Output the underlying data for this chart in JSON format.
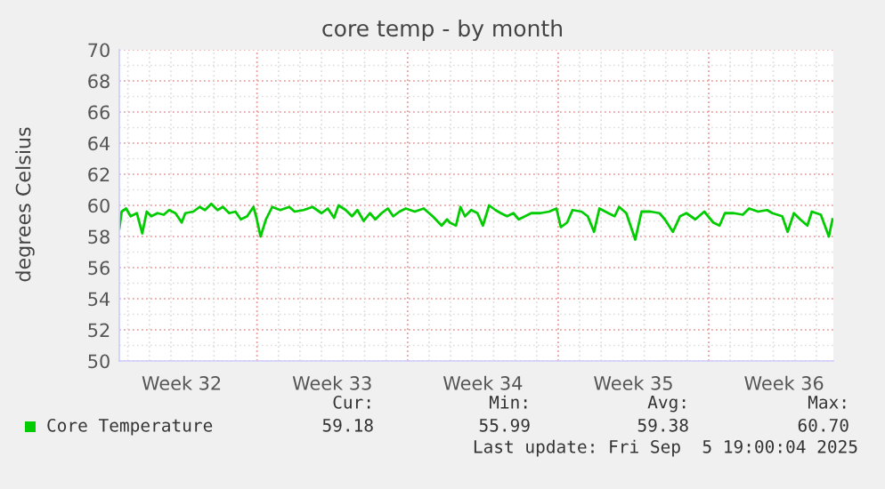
{
  "chart_data": {
    "type": "line",
    "title": "core temp - by month",
    "ylabel": "degrees Celsius",
    "xlim": [
      "2025-08-03T14:24",
      "2025-09-05T19:00"
    ],
    "ylim": [
      50,
      70
    ],
    "yticks": [
      50,
      52,
      54,
      56,
      58,
      60,
      62,
      64,
      66,
      68,
      70
    ],
    "xticks": [
      {
        "value": "2025-08-06T12:00",
        "label": "Week 32"
      },
      {
        "value": "2025-08-10",
        "label": null
      },
      {
        "value": "2025-08-13T12:00",
        "label": "Week 33"
      },
      {
        "value": "2025-08-17",
        "label": null
      },
      {
        "value": "2025-08-20T12:00",
        "label": "Week 34"
      },
      {
        "value": "2025-08-24",
        "label": null
      },
      {
        "value": "2025-08-27T12:00",
        "label": "Week 35"
      },
      {
        "value": "2025-08-31",
        "label": null
      },
      {
        "value": "2025-09-03T12:00",
        "label": "Week 36"
      }
    ],
    "grid": true,
    "legend": "bottom left",
    "marker": "none",
    "line_style": "solid",
    "series": [
      {
        "name": "Core Temperature",
        "color": "#00cc00",
        "x": [
          "2025-08-03T14:24",
          "2025-08-03T17:00",
          "2025-08-03T22:00",
          "2025-08-04T03:00",
          "2025-08-04T10:00",
          "2025-08-04T16:00",
          "2025-08-04T21:00",
          "2025-08-05T02:00",
          "2025-08-05T09:00",
          "2025-08-05T16:00",
          "2025-08-05T22:00",
          "2025-08-06T05:00",
          "2025-08-06T12:00",
          "2025-08-06T16:00",
          "2025-08-07T01:00",
          "2025-08-07T08:00",
          "2025-08-07T14:00",
          "2025-08-07T21:00",
          "2025-08-08T04:00",
          "2025-08-08T10:00",
          "2025-08-08T17:00",
          "2025-08-09T00:00",
          "2025-08-09T06:00",
          "2025-08-09T13:00",
          "2025-08-09T20:00",
          "2025-08-09T23:00",
          "2025-08-10T04:00",
          "2025-08-10T10:00",
          "2025-08-10T17:00",
          "2025-08-11T02:00",
          "2025-08-11T12:00",
          "2025-08-11T18:00",
          "2025-08-12T04:00",
          "2025-08-12T14:00",
          "2025-08-13T00:00",
          "2025-08-13T07:00",
          "2025-08-13T14:00",
          "2025-08-13T19:00",
          "2025-08-14T03:00",
          "2025-08-14T10:00",
          "2025-08-14T16:00",
          "2025-08-14T23:00",
          "2025-08-15T06:00",
          "2025-08-15T12:00",
          "2025-08-15T19:00",
          "2025-08-16T02:00",
          "2025-08-16T08:00",
          "2025-08-16T15:00",
          "2025-08-16T22:00",
          "2025-08-17T08:00",
          "2025-08-17T18:00",
          "2025-08-18T04:00",
          "2025-08-18T14:00",
          "2025-08-18T20:00",
          "2025-08-18T23:00",
          "2025-08-19T06:00",
          "2025-08-19T11:00",
          "2025-08-19T16:00",
          "2025-08-19T23:00",
          "2025-08-20T06:00",
          "2025-08-20T12:00",
          "2025-08-20T19:00",
          "2025-08-21T02:00",
          "2025-08-21T08:00",
          "2025-08-21T15:00",
          "2025-08-21T22:00",
          "2025-08-22T04:00",
          "2025-08-22T11:00",
          "2025-08-22T18:00",
          "2025-08-23T04:00",
          "2025-08-23T14:00",
          "2025-08-23T22:00",
          "2025-08-24T03:00",
          "2025-08-24T10:00",
          "2025-08-24T16:00",
          "2025-08-25T02:00",
          "2025-08-25T09:00",
          "2025-08-25T16:00",
          "2025-08-25T22:00",
          "2025-08-26T08:00",
          "2025-08-26T15:00",
          "2025-08-26T20:00",
          "2025-08-27T04:00",
          "2025-08-27T14:00",
          "2025-08-27T21:00",
          "2025-08-28T07:00",
          "2025-08-28T17:00",
          "2025-08-28T23:00",
          "2025-08-29T08:00",
          "2025-08-29T16:00",
          "2025-08-29T23:00",
          "2025-08-30T09:00",
          "2025-08-30T19:00",
          "2025-08-31T05:00",
          "2025-08-31T12:00",
          "2025-08-31T18:00",
          "2025-09-01T04:00",
          "2025-09-01T14:00",
          "2025-09-01T21:00",
          "2025-09-02T07:00",
          "2025-09-02T17:00",
          "2025-09-02T23:00",
          "2025-09-03T10:00",
          "2025-09-03T16:00",
          "2025-09-03T23:00",
          "2025-09-04T06:00",
          "2025-09-04T14:00",
          "2025-09-04T19:00",
          "2025-09-05T05:00",
          "2025-09-05T14:00",
          "2025-09-05T18:00"
        ],
        "values": [
          58.5,
          59.6,
          59.8,
          59.3,
          59.5,
          58.2,
          59.6,
          59.3,
          59.5,
          59.4,
          59.7,
          59.5,
          58.9,
          59.5,
          59.6,
          59.9,
          59.7,
          60.1,
          59.7,
          59.9,
          59.5,
          59.6,
          59.1,
          59.3,
          59.9,
          59.3,
          58.0,
          59.1,
          59.9,
          59.7,
          59.9,
          59.6,
          59.7,
          59.9,
          59.5,
          59.8,
          59.2,
          60.0,
          59.7,
          59.3,
          59.7,
          59.0,
          59.5,
          59.1,
          59.5,
          59.8,
          59.3,
          59.6,
          59.8,
          59.6,
          59.8,
          59.3,
          58.7,
          59.1,
          58.9,
          58.7,
          59.9,
          59.3,
          59.7,
          59.5,
          58.7,
          60.0,
          59.7,
          59.5,
          59.3,
          59.5,
          59.1,
          59.3,
          59.5,
          59.5,
          59.6,
          59.8,
          58.6,
          58.9,
          59.7,
          59.6,
          59.3,
          58.3,
          59.8,
          59.5,
          59.3,
          59.9,
          59.5,
          57.8,
          59.6,
          59.6,
          59.5,
          59.1,
          58.3,
          59.3,
          59.5,
          59.1,
          59.6,
          58.9,
          58.7,
          59.5,
          59.5,
          59.4,
          59.8,
          59.6,
          59.7,
          59.5,
          59.3,
          58.3,
          59.5,
          59.1,
          58.7,
          59.6,
          59.4,
          58.0,
          59.1
        ]
      }
    ],
    "annotations": [
      "Cur:",
      "Min:",
      "Avg:",
      "Max:",
      "59.18",
      "55.99",
      "59.38",
      "60.70",
      "Last update: Fri Sep  5 19:00:04 2025"
    ]
  }
}
